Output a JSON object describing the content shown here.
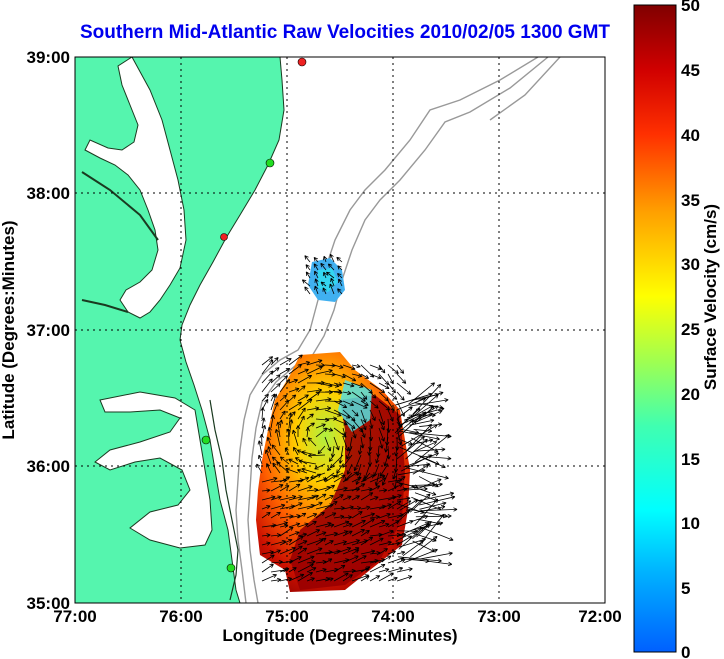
{
  "title": "Southern Mid-Atlantic Raw Velocities 2010/02/05 1300 GMT",
  "x_axis": {
    "label": "Longitude (Degrees:Minutes)",
    "ticks": [
      "77:00",
      "76:00",
      "75:00",
      "74:00",
      "73:00",
      "72:00"
    ]
  },
  "y_axis": {
    "label": "Latitude (Degrees:Minutes)",
    "ticks": [
      "39:00",
      "38:00",
      "37:00",
      "36:00",
      "35:00"
    ]
  },
  "colorbar": {
    "label": "Surface Velocity (cm/s)",
    "ticks": [
      "50",
      "45",
      "40",
      "35",
      "30",
      "25",
      "20",
      "15",
      "10",
      "5",
      "0"
    ],
    "colormap": "jet",
    "range": [
      0,
      50
    ]
  },
  "map": {
    "extent": {
      "lon_min": -77,
      "lon_max": -72,
      "lat_min": 35,
      "lat_max": 39
    },
    "grid": "dotted",
    "land_color": "#55f5ae",
    "water_color": "#ffffff",
    "bathymetry_color": "#999999",
    "station_colors": {
      "green": "#22dd22",
      "red": "#ee2222"
    }
  }
}
